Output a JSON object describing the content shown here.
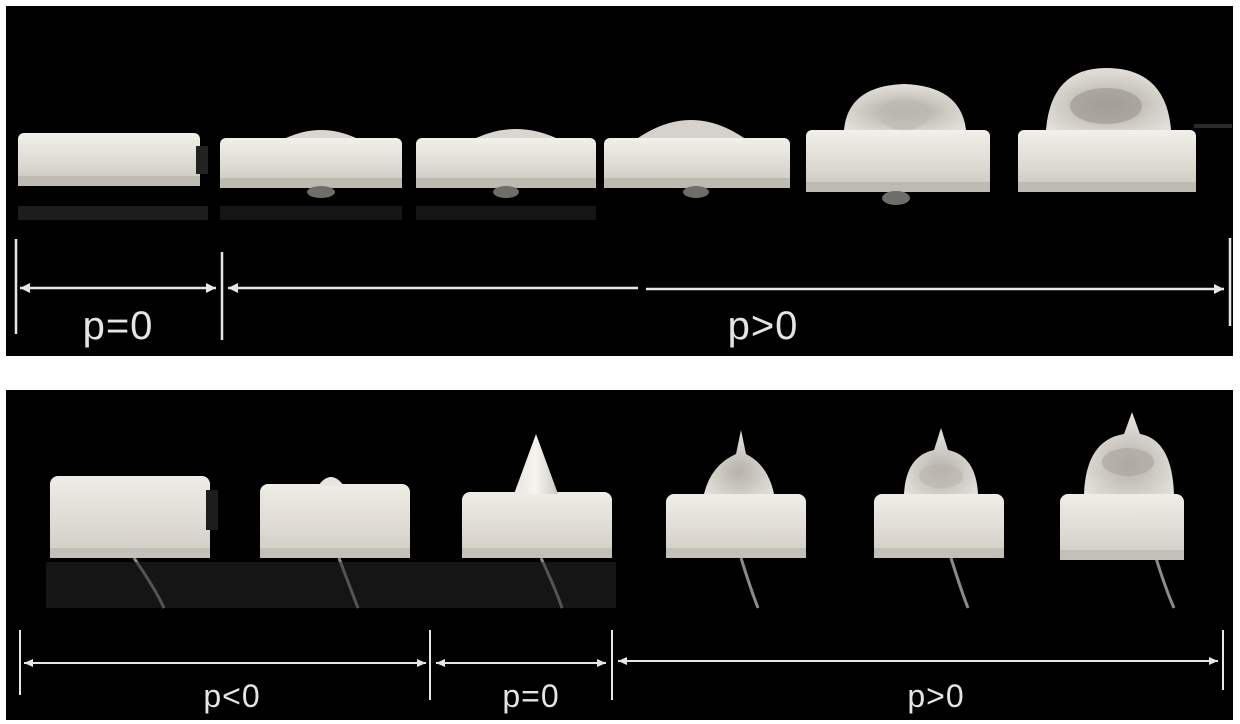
{
  "top_panel": {
    "labels": {
      "zero": "p=0",
      "positive": "p>0"
    }
  },
  "bottom_panel": {
    "labels": {
      "negative": "p<0",
      "zero": "p=0",
      "positive": "p>0"
    }
  }
}
